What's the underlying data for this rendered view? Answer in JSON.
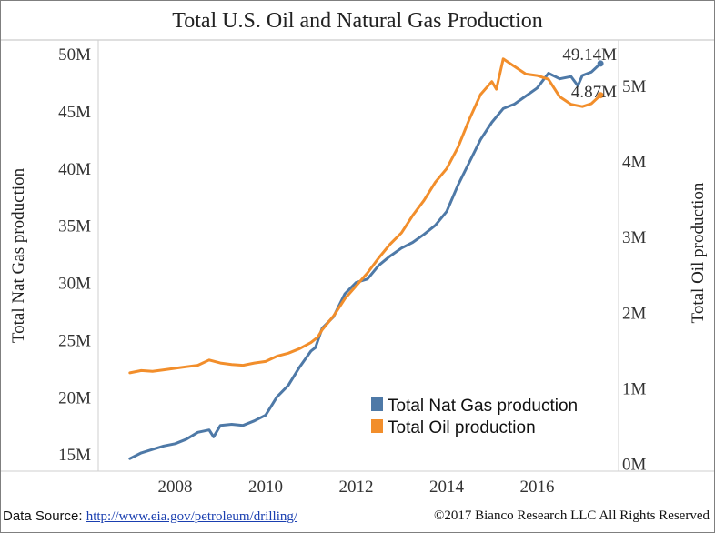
{
  "colors": {
    "gas": "#4e79a7",
    "oil": "#f28e2b",
    "frame": "#7f7f7f",
    "grid": "#dddddd"
  },
  "chart_data": {
    "type": "line",
    "title": "Total U.S. Oil and Natural Gas Production",
    "x_ticks": [
      "2008",
      "2010",
      "2012",
      "2014",
      "2016"
    ],
    "x_tick_values": [
      2008,
      2010,
      2012,
      2014,
      2016
    ],
    "xlim": [
      2006.3,
      2017.8
    ],
    "y_left": {
      "label": "Total Nat Gas production",
      "ticks": [
        "15M",
        "20M",
        "25M",
        "30M",
        "35M",
        "40M",
        "45M",
        "50M"
      ],
      "tick_values": [
        15,
        20,
        25,
        30,
        35,
        40,
        45,
        50
      ],
      "lim": [
        13.5,
        51.2
      ]
    },
    "y_right": {
      "label": "Total Oil production",
      "ticks": [
        "0M",
        "1M",
        "2M",
        "3M",
        "4M",
        "5M"
      ],
      "tick_values": [
        0,
        1,
        2,
        3,
        4,
        5
      ],
      "lim": [
        -0.1,
        5.6
      ]
    },
    "series": [
      {
        "name": "Total Nat Gas production",
        "axis": "left",
        "end_label": "49.14M",
        "points": [
          [
            2007.0,
            14.6
          ],
          [
            2007.25,
            15.1
          ],
          [
            2007.5,
            15.4
          ],
          [
            2007.75,
            15.7
          ],
          [
            2008.0,
            15.9
          ],
          [
            2008.25,
            16.3
          ],
          [
            2008.5,
            16.9
          ],
          [
            2008.75,
            17.1
          ],
          [
            2008.85,
            16.5
          ],
          [
            2009.0,
            17.5
          ],
          [
            2009.25,
            17.6
          ],
          [
            2009.5,
            17.5
          ],
          [
            2009.75,
            17.9
          ],
          [
            2010.0,
            18.4
          ],
          [
            2010.25,
            20.0
          ],
          [
            2010.5,
            21.0
          ],
          [
            2010.75,
            22.6
          ],
          [
            2011.0,
            24.0
          ],
          [
            2011.1,
            24.3
          ],
          [
            2011.25,
            26.0
          ],
          [
            2011.5,
            27.0
          ],
          [
            2011.75,
            29.0
          ],
          [
            2012.0,
            30.0
          ],
          [
            2012.25,
            30.3
          ],
          [
            2012.5,
            31.5
          ],
          [
            2012.75,
            32.3
          ],
          [
            2013.0,
            33.0
          ],
          [
            2013.25,
            33.5
          ],
          [
            2013.5,
            34.2
          ],
          [
            2013.75,
            35.0
          ],
          [
            2014.0,
            36.2
          ],
          [
            2014.25,
            38.5
          ],
          [
            2014.5,
            40.5
          ],
          [
            2014.75,
            42.5
          ],
          [
            2015.0,
            44.0
          ],
          [
            2015.25,
            45.2
          ],
          [
            2015.5,
            45.6
          ],
          [
            2015.75,
            46.3
          ],
          [
            2016.0,
            47.0
          ],
          [
            2016.25,
            48.3
          ],
          [
            2016.5,
            47.8
          ],
          [
            2016.75,
            48.0
          ],
          [
            2016.9,
            47.2
          ],
          [
            2017.0,
            48.1
          ],
          [
            2017.2,
            48.4
          ],
          [
            2017.4,
            49.14
          ]
        ]
      },
      {
        "name": "Total Oil production",
        "axis": "right",
        "end_label": "4.87M",
        "points": [
          [
            2007.0,
            1.2
          ],
          [
            2007.25,
            1.23
          ],
          [
            2007.5,
            1.22
          ],
          [
            2007.75,
            1.24
          ],
          [
            2008.0,
            1.26
          ],
          [
            2008.25,
            1.28
          ],
          [
            2008.5,
            1.3
          ],
          [
            2008.75,
            1.37
          ],
          [
            2009.0,
            1.33
          ],
          [
            2009.25,
            1.31
          ],
          [
            2009.5,
            1.3
          ],
          [
            2009.75,
            1.33
          ],
          [
            2010.0,
            1.35
          ],
          [
            2010.25,
            1.42
          ],
          [
            2010.5,
            1.46
          ],
          [
            2010.75,
            1.52
          ],
          [
            2011.0,
            1.6
          ],
          [
            2011.15,
            1.67
          ],
          [
            2011.25,
            1.77
          ],
          [
            2011.5,
            1.95
          ],
          [
            2011.75,
            2.18
          ],
          [
            2012.0,
            2.35
          ],
          [
            2012.25,
            2.52
          ],
          [
            2012.5,
            2.72
          ],
          [
            2012.75,
            2.9
          ],
          [
            2013.0,
            3.05
          ],
          [
            2013.25,
            3.28
          ],
          [
            2013.5,
            3.48
          ],
          [
            2013.75,
            3.72
          ],
          [
            2014.0,
            3.9
          ],
          [
            2014.25,
            4.18
          ],
          [
            2014.5,
            4.55
          ],
          [
            2014.75,
            4.88
          ],
          [
            2015.0,
            5.05
          ],
          [
            2015.1,
            4.95
          ],
          [
            2015.25,
            5.35
          ],
          [
            2015.5,
            5.25
          ],
          [
            2015.75,
            5.15
          ],
          [
            2016.0,
            5.13
          ],
          [
            2016.25,
            5.08
          ],
          [
            2016.5,
            4.85
          ],
          [
            2016.75,
            4.75
          ],
          [
            2017.0,
            4.72
          ],
          [
            2017.2,
            4.76
          ],
          [
            2017.4,
            4.87
          ]
        ]
      }
    ],
    "legend": {
      "position": "bottom-right"
    },
    "grid": false
  },
  "footer": {
    "source_label": "Data Source:",
    "source_url": "http://www.eia.gov/petroleum/drilling/",
    "copyright": "©2017 Bianco Research LLC  All Rights Reserved"
  }
}
